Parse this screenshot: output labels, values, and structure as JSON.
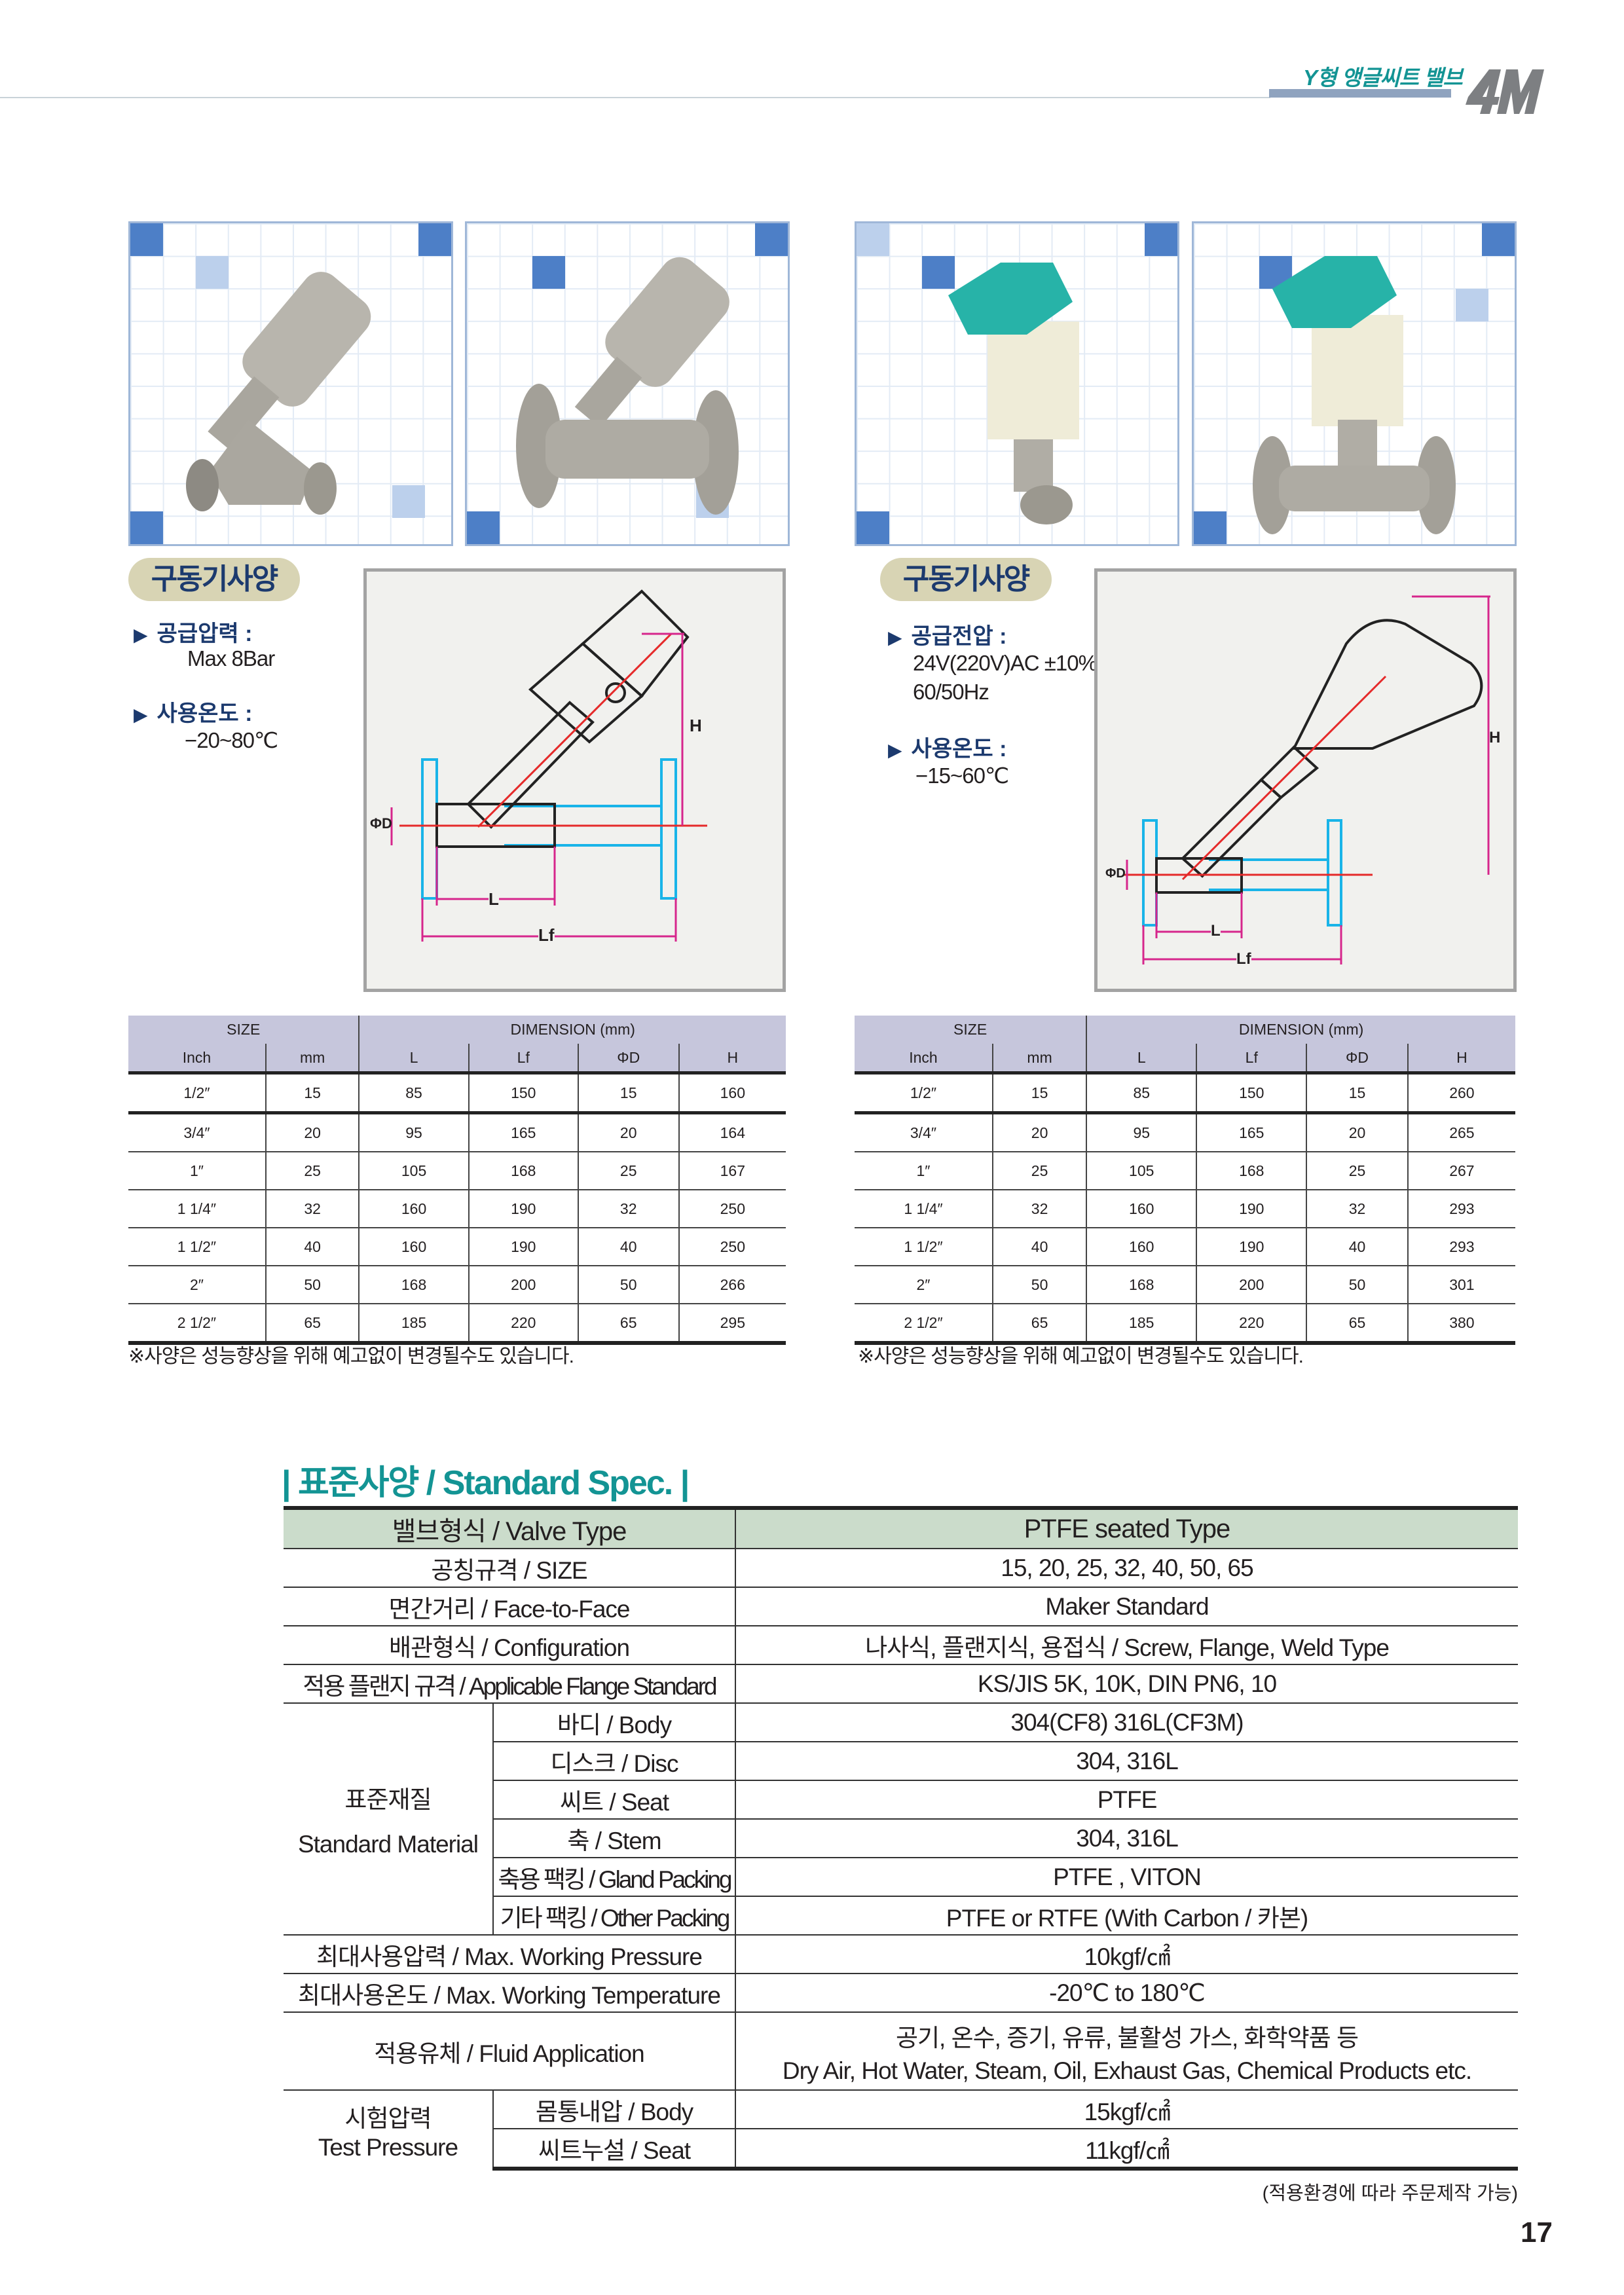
{
  "header": {
    "title": "Y형 앵글씨트 밸브",
    "logo_text": "4M",
    "colors": {
      "title": "#139494",
      "bar": "#8fa3bf",
      "logo": "#7d7f82"
    }
  },
  "photos": [
    {
      "label": "screw-type pneumatic y-valve",
      "accent": "#9a9a95"
    },
    {
      "label": "flange-type pneumatic y-valve",
      "accent": "#9a9a95"
    },
    {
      "label": "screw-type electric y-valve",
      "accent": "#27b3a8"
    },
    {
      "label": "flange-type electric y-valve",
      "accent": "#27b3a8"
    }
  ],
  "left_panel": {
    "badge": "구동기사양",
    "items": [
      {
        "label": "공급압력 :",
        "value": [
          "Max 8Bar"
        ]
      },
      {
        "label": "사용온도 :",
        "value": [
          "−20~80℃"
        ]
      }
    ],
    "drawing_labels": {
      "h": "H",
      "d": "ΦD",
      "l": "L",
      "lf": "Lf"
    }
  },
  "right_panel": {
    "badge": "구동기사양",
    "items": [
      {
        "label": "공급전압 :",
        "value": [
          "24V(220V)AC ±10%",
          "60/50Hz"
        ]
      },
      {
        "label": "사용온도 :",
        "value": [
          "−15~60℃"
        ]
      }
    ],
    "drawing_labels": {
      "h": "H",
      "d": "ΦD",
      "l": "L",
      "lf": "Lf"
    }
  },
  "dim_tables": [
    {
      "group_headers": [
        "SIZE",
        "DIMENSION (mm)"
      ],
      "columns": [
        "Inch",
        "mm",
        "L",
        "Lf",
        "ΦD",
        "H"
      ],
      "rows": [
        [
          "1/2″",
          "15",
          "85",
          "150",
          "15",
          "160"
        ],
        [
          "3/4″",
          "20",
          "95",
          "165",
          "20",
          "164"
        ],
        [
          "1″",
          "25",
          "105",
          "168",
          "25",
          "167"
        ],
        [
          "1 1/4″",
          "32",
          "160",
          "190",
          "32",
          "250"
        ],
        [
          "1 1/2″",
          "40",
          "160",
          "190",
          "40",
          "250"
        ],
        [
          "2″",
          "50",
          "168",
          "200",
          "50",
          "266"
        ],
        [
          "2 1/2″",
          "65",
          "185",
          "220",
          "65",
          "295"
        ]
      ],
      "note": "※사양은 성능향상을 위해 예고없이 변경될수도 있습니다."
    },
    {
      "group_headers": [
        "SIZE",
        "DIMENSION (mm)"
      ],
      "columns": [
        "Inch",
        "mm",
        "L",
        "Lf",
        "ΦD",
        "H"
      ],
      "rows": [
        [
          "1/2″",
          "15",
          "85",
          "150",
          "15",
          "260"
        ],
        [
          "3/4″",
          "20",
          "95",
          "165",
          "20",
          "265"
        ],
        [
          "1″",
          "25",
          "105",
          "168",
          "25",
          "267"
        ],
        [
          "1 1/4″",
          "32",
          "160",
          "190",
          "32",
          "293"
        ],
        [
          "1 1/2″",
          "40",
          "160",
          "190",
          "40",
          "293"
        ],
        [
          "2″",
          "50",
          "168",
          "200",
          "50",
          "301"
        ],
        [
          "2 1/2″",
          "65",
          "185",
          "220",
          "65",
          "380"
        ]
      ],
      "note": "※사양은 성능향상을 위해 예고없이 변경될수도 있습니다."
    }
  ],
  "standard_spec": {
    "title": "| 표준사양 / Standard Spec. |",
    "valve_type": {
      "label": "밸브형식 / Valve Type",
      "value": "PTFE seated Type"
    },
    "size": {
      "label": "공칭규격 / SIZE",
      "value": "15, 20, 25, 32, 40, 50, 65"
    },
    "face_to_face": {
      "label": "면간거리 / Face-to-Face",
      "value": "Maker Standard"
    },
    "configuration": {
      "label": "배관형식 / Configuration",
      "value": "나사식, 플랜지식, 용접식 / Screw, Flange, Weld Type"
    },
    "flange_standard": {
      "label": "적용 플랜지 규격 / Applicable Flange Standard",
      "value": "KS/JIS 5K, 10K, DIN PN6, 10"
    },
    "material": {
      "label_ko": "표준재질",
      "label_en": "Standard Material",
      "items": [
        {
          "label": "바디 / Body",
          "value": "304(CF8) 316L(CF3M)"
        },
        {
          "label": "디스크 / Disc",
          "value": "304, 316L"
        },
        {
          "label": "씨트 /  Seat",
          "value": "PTFE"
        },
        {
          "label": "축 /  Stem",
          "value": "304, 316L"
        },
        {
          "label": "축용 팩킹 / Gland Packing",
          "value": "PTFE , VITON"
        },
        {
          "label": "기타 팩킹 / Other Packing",
          "value": "PTFE or RTFE (With Carbon / 카본)"
        }
      ]
    },
    "max_pressure": {
      "label": "최대사용압력 / Max. Working Pressure",
      "value": "10kgf/㎠"
    },
    "max_temperature": {
      "label": "최대사용온도 / Max. Working Temperature",
      "value": "-20℃ to 180℃"
    },
    "fluid": {
      "label": "적용유체 / Fluid Application",
      "value_ko": "공기, 온수, 증기, 유류, 불활성 가스, 화학약품 등",
      "value_en": "Dry Air, Hot Water, Steam, Oil, Exhaust Gas, Chemical Products etc."
    },
    "test_pressure": {
      "label_ko": "시험압력",
      "label_en": "Test Pressure",
      "items": [
        {
          "label": "몸통내압 / Body",
          "value": "15kgf/㎠"
        },
        {
          "label": "씨트누설 / Seat",
          "value": "11kgf/㎠"
        }
      ]
    },
    "footnote": "(적용환경에 따라 주문제작 가능)",
    "header_color": "#cbdccb"
  },
  "page_number": "17"
}
